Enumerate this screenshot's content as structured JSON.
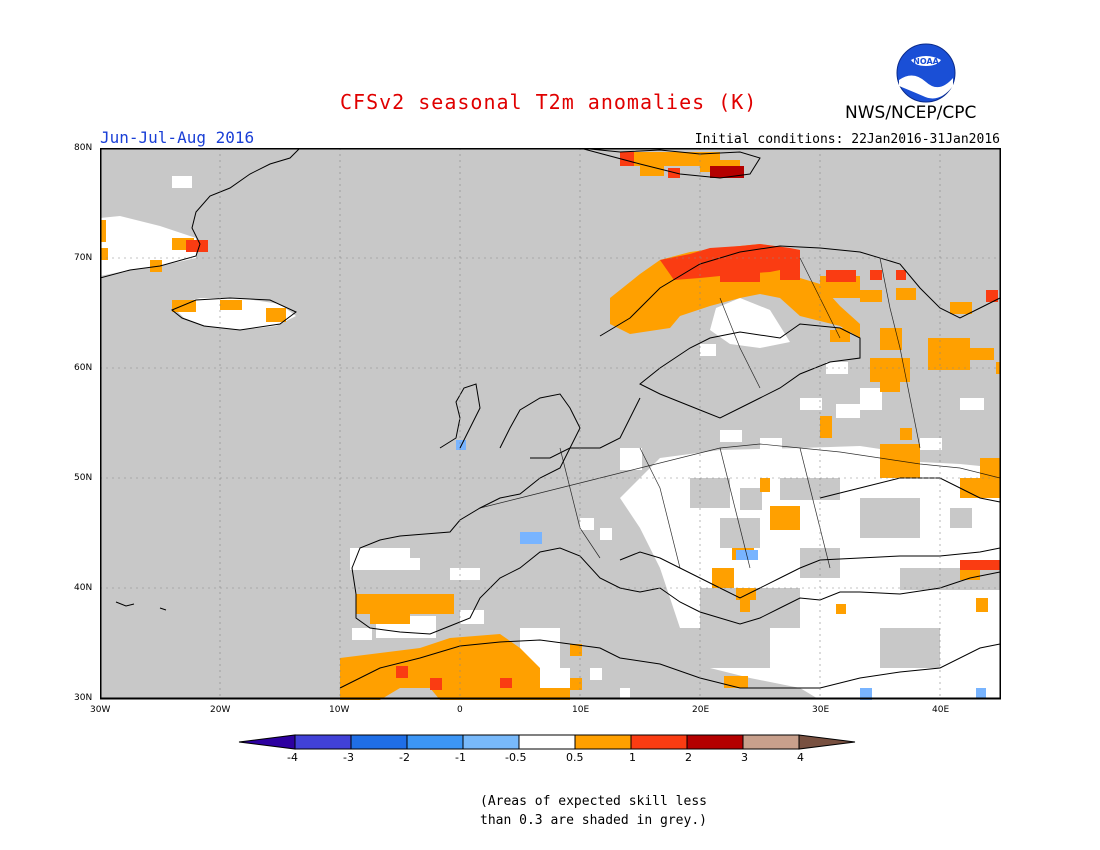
{
  "header": {
    "title": "CFSv2 seasonal T2m anomalies (K)",
    "org": "NWS/NCEP/CPC",
    "season": "Jun-Jul-Aug 2016",
    "initial_conditions": "Initial conditions: 22Jan2016-31Jan2016",
    "logo_text": "NOAA"
  },
  "map": {
    "lon_range": [
      -30,
      45
    ],
    "lat_range": [
      30,
      80
    ],
    "lat_ticks": [
      "80N",
      "70N",
      "60N",
      "50N",
      "40N",
      "30N"
    ],
    "lon_ticks": [
      "30W",
      "20W",
      "10W",
      "0",
      "10E",
      "20E",
      "30E",
      "40E"
    ],
    "colors": {
      "grey": "#c8c8c8",
      "white": "#ffffff",
      "orange": "#ffa000",
      "red_orange": "#fa3c12",
      "dark_red": "#b40000",
      "light_blue": "#78b4ff"
    }
  },
  "colorbar": {
    "labels": [
      "-4",
      "-3",
      "-2",
      "-1",
      "-0.5",
      "0.5",
      "1",
      "2",
      "3",
      "4"
    ],
    "colors": [
      "#2d00a0",
      "#4141d7",
      "#1f6ee6",
      "#3c96f5",
      "#78b9fa",
      "#ffffff",
      "#ffa000",
      "#fa3c12",
      "#b40000",
      "#c8a08c",
      "#785040"
    ]
  },
  "note": {
    "line1": "(Areas of expected skill less",
    "line2": "than 0.3 are shaded in grey.)"
  }
}
